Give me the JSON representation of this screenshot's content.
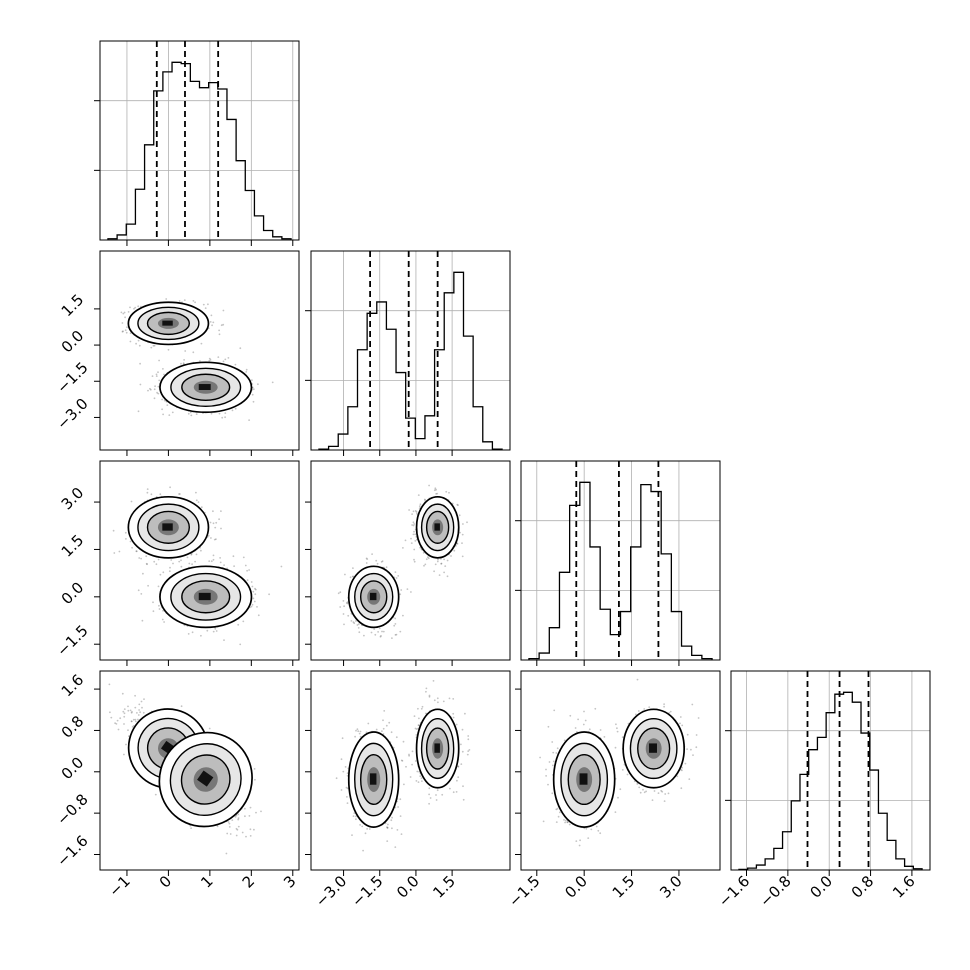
{
  "chart_data": {
    "type": "corner",
    "dimensions": 4,
    "axis_labels": [
      "",
      "",
      "",
      ""
    ],
    "ranges": [
      [
        -1.65,
        3.15
      ],
      [
        -4.35,
        3.9
      ],
      [
        -2.0,
        4.3
      ],
      [
        -1.9,
        1.95
      ]
    ],
    "ticks": [
      {
        "values": [
          -1,
          0,
          1,
          2,
          3
        ],
        "labels": [
          "−1",
          "0",
          "1",
          "2",
          "3"
        ]
      },
      {
        "values": [
          -3.0,
          -1.5,
          0.0,
          1.5
        ],
        "labels": [
          "−3.0",
          "−1.5",
          "0.0",
          "1.5"
        ]
      },
      {
        "values": [
          -1.5,
          0.0,
          1.5,
          3.0
        ],
        "labels": [
          "−1.5",
          "0.0",
          "1.5",
          "3.0"
        ]
      },
      {
        "values": [
          -1.6,
          -0.8,
          0.0,
          0.8,
          1.6
        ],
        "labels": [
          "−1.6",
          "−0.8",
          "0.0",
          "0.8",
          "1.6"
        ]
      }
    ],
    "quantiles": [
      [
        -0.28,
        0.4,
        1.2
      ],
      [
        -1.9,
        -0.3,
        0.9
      ],
      [
        -0.25,
        1.1,
        2.35
      ],
      [
        -0.42,
        0.2,
        0.76
      ]
    ],
    "histograms": [
      {
        "counts": [
          2,
          8,
          25,
          80,
          150,
          235,
          265,
          280,
          278,
          250,
          240,
          248,
          238,
          190,
          125,
          78,
          38,
          15,
          5,
          2
        ]
      },
      {
        "counts": [
          2,
          8,
          35,
          95,
          220,
          300,
          325,
          265,
          170,
          70,
          25,
          75,
          220,
          345,
          390,
          250,
          95,
          18,
          2
        ]
      },
      {
        "counts": [
          3,
          15,
          70,
          190,
          335,
          385,
          245,
          110,
          55,
          105,
          245,
          380,
          365,
          230,
          105,
          30,
          10,
          3
        ]
      },
      {
        "counts": [
          1,
          3,
          8,
          18,
          35,
          62,
          112,
          155,
          195,
          215,
          255,
          285,
          288,
          272,
          222,
          162,
          92,
          48,
          18,
          6,
          2
        ]
      }
    ],
    "components": [
      {
        "mean": [
          0.0,
          0.9,
          2.2,
          0.45
        ],
        "std": [
          0.42,
          0.38,
          0.42,
          0.33
        ]
      },
      {
        "mean": [
          0.9,
          -1.75,
          0.0,
          -0.15
        ],
        "std": [
          0.48,
          0.45,
          0.42,
          0.4
        ]
      }
    ],
    "grid": true,
    "contours": true,
    "scatter_points": true
  }
}
